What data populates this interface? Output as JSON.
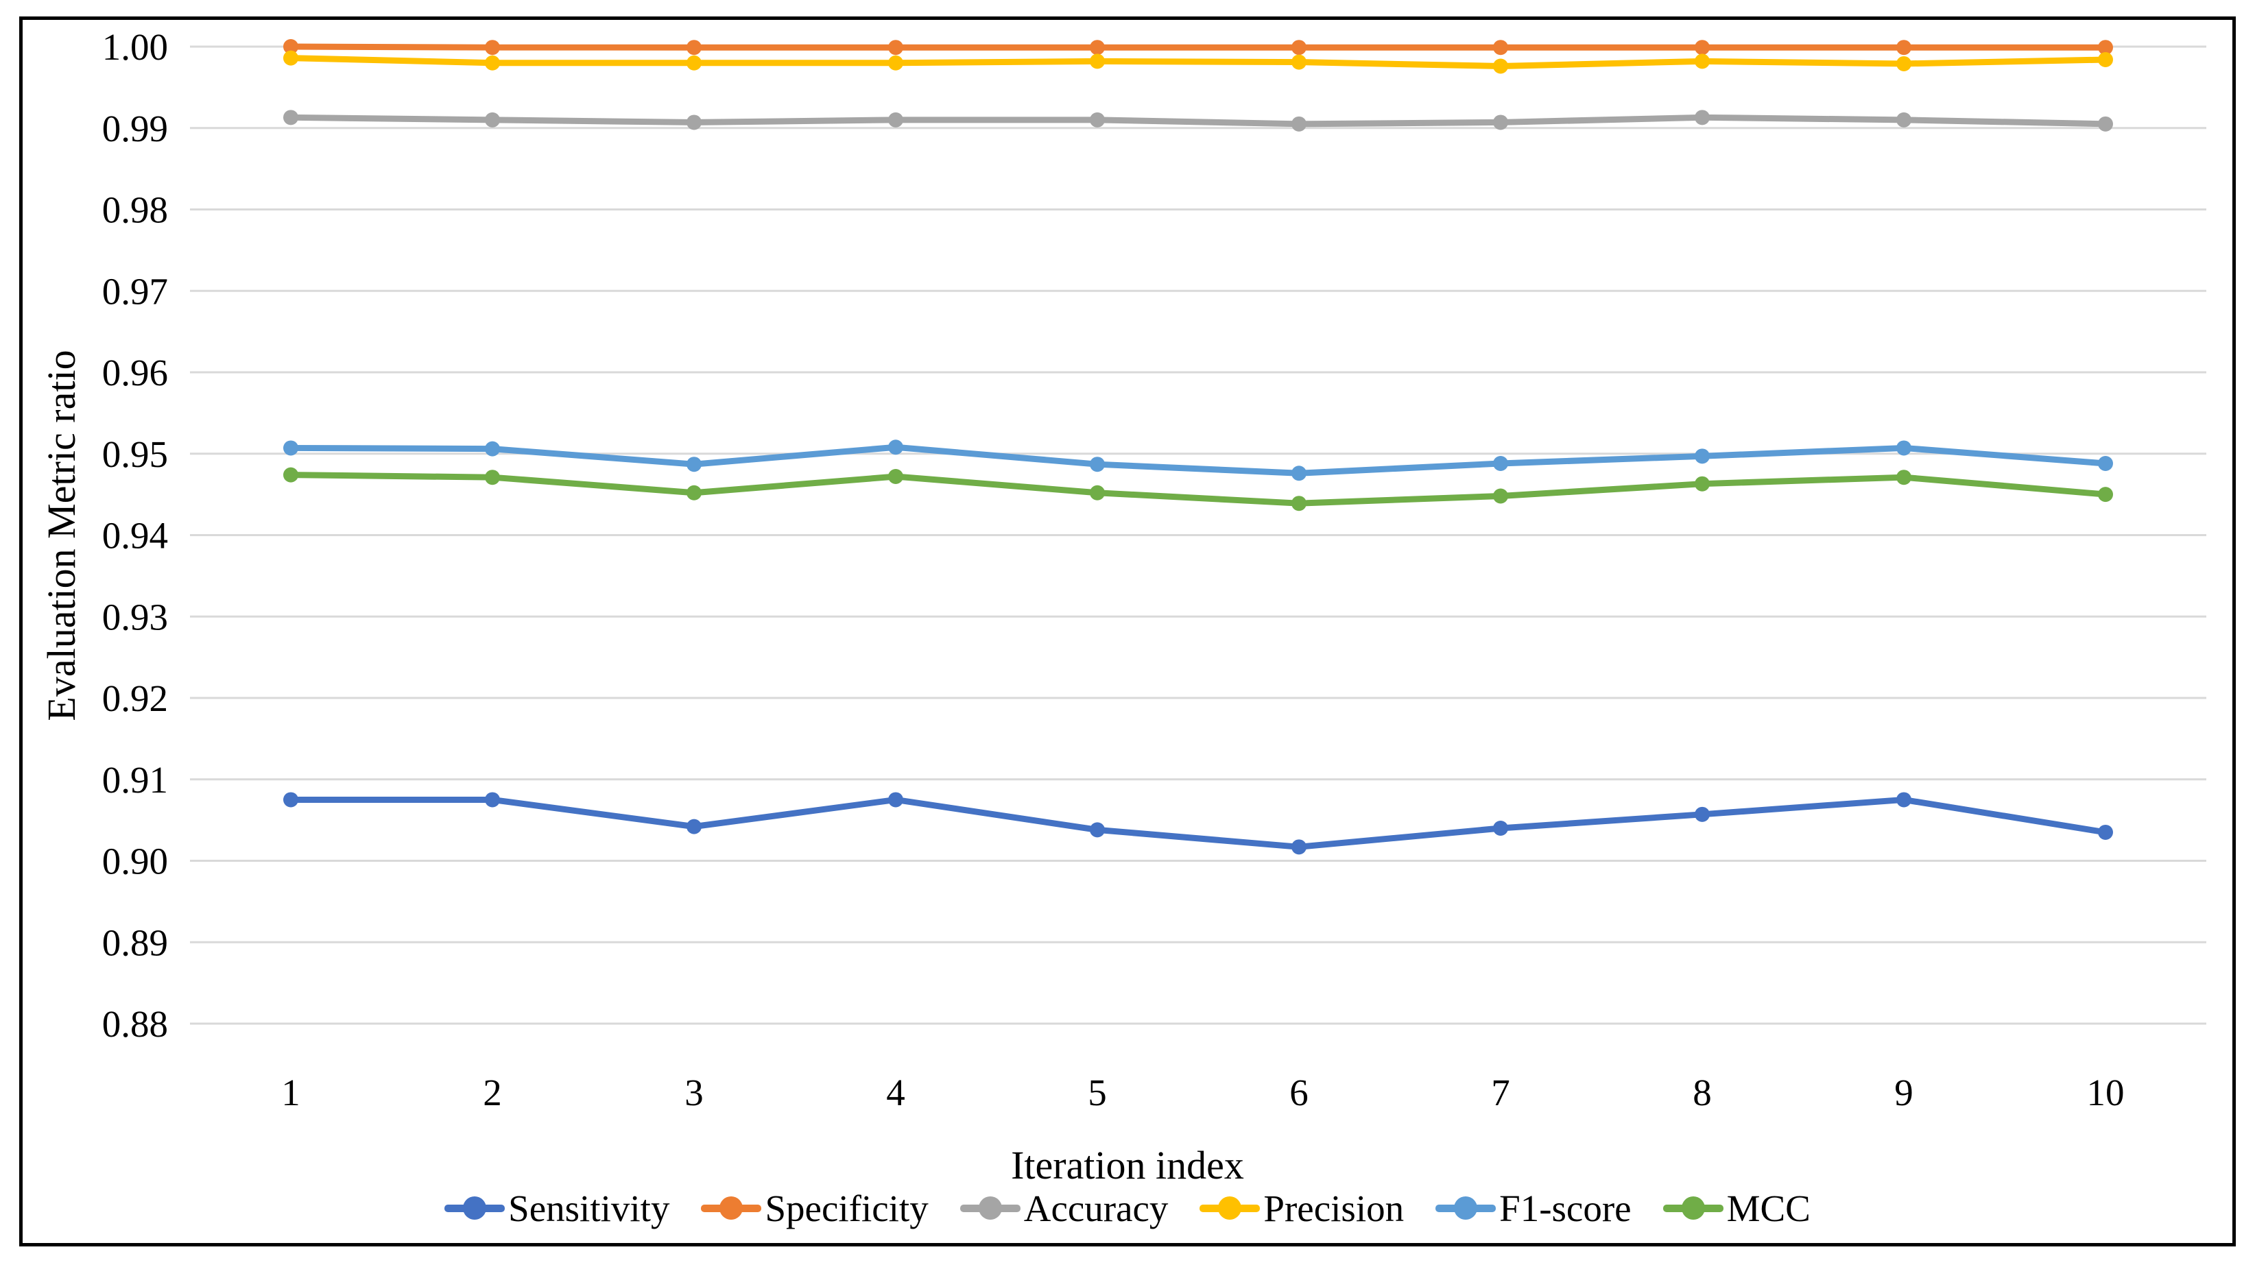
{
  "figure": {
    "background_color": "#ffffff",
    "border_color": "#000000"
  },
  "axes": {
    "grid_color": "#d9d9d9",
    "text_color": "#000000"
  },
  "chart_data": {
    "type": "line",
    "title": "",
    "xlabel": "Iteration index",
    "ylabel": "Evaluation Metric ratio",
    "x": [
      "1",
      "2",
      "3",
      "4",
      "5",
      "6",
      "7",
      "8",
      "9",
      "10"
    ],
    "ylim": [
      0.88,
      1.0
    ],
    "y_tick_step": 0.01,
    "y_ticks": [
      "1.00",
      "0.99",
      "0.98",
      "0.97",
      "0.96",
      "0.95",
      "0.94",
      "0.93",
      "0.92",
      "0.91",
      "0.90",
      "0.89",
      "0.88"
    ],
    "grid": true,
    "legend_position": "bottom",
    "series": [
      {
        "name": "Sensitivity",
        "color": "#4472C4",
        "values": [
          0.9075,
          0.9075,
          0.9042,
          0.9075,
          0.9038,
          0.9017,
          0.904,
          0.9057,
          0.9075,
          0.9035
        ]
      },
      {
        "name": "Specificity",
        "color": "#ED7D31",
        "values": [
          1.0,
          0.9999,
          0.9999,
          0.9999,
          0.9999,
          0.9999,
          0.9999,
          0.9999,
          0.9999,
          0.9999
        ]
      },
      {
        "name": "Accuracy",
        "color": "#A5A5A5",
        "values": [
          0.9913,
          0.991,
          0.9907,
          0.991,
          0.991,
          0.9905,
          0.9907,
          0.9913,
          0.991,
          0.9905
        ]
      },
      {
        "name": "Precision",
        "color": "#FFC000",
        "values": [
          0.9986,
          0.998,
          0.998,
          0.998,
          0.9982,
          0.9981,
          0.9976,
          0.9982,
          0.9979,
          0.9984
        ]
      },
      {
        "name": "F1-score",
        "color": "#5B9BD5",
        "values": [
          0.9507,
          0.9506,
          0.9487,
          0.9508,
          0.9487,
          0.9476,
          0.9488,
          0.9497,
          0.9507,
          0.9488
        ]
      },
      {
        "name": "MCC",
        "color": "#70AD47",
        "values": [
          0.9474,
          0.9471,
          0.9452,
          0.9472,
          0.9452,
          0.9439,
          0.9448,
          0.9463,
          0.9471,
          0.945
        ]
      }
    ]
  }
}
